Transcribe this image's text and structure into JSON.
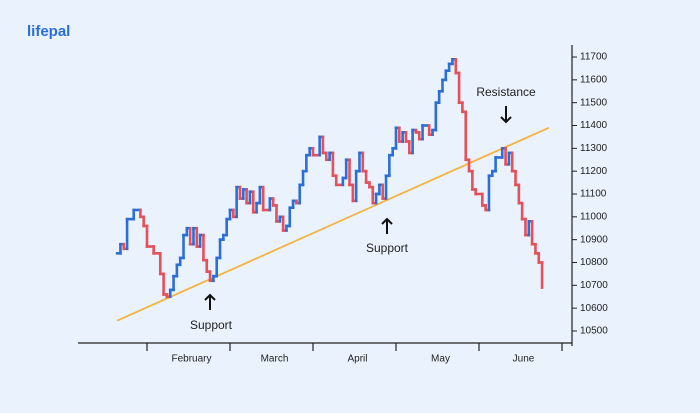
{
  "brand": "lifepal",
  "chart_data": {
    "type": "step-line",
    "categories": [
      null,
      "February",
      "March",
      "April",
      "May",
      "June"
    ],
    "xlim": [
      0,
      150
    ],
    "ylim": [
      10450,
      11750
    ],
    "yticks": [
      10500,
      10600,
      10700,
      10800,
      10900,
      11000,
      11100,
      11200,
      11300,
      11400,
      11500,
      11600,
      11700
    ],
    "up_color": "#2b6fd6",
    "down_color": "#e5505a",
    "x": [
      16,
      17,
      18,
      19,
      21,
      23,
      24,
      25,
      27,
      29,
      30,
      31,
      32,
      33,
      34,
      35,
      36,
      37,
      38,
      39,
      40,
      41,
      42,
      43,
      44,
      45,
      46,
      47,
      48,
      49,
      50,
      51,
      52,
      53,
      54,
      55,
      56,
      57,
      58,
      59,
      60,
      62,
      63,
      64,
      65,
      66,
      67,
      68,
      69,
      70,
      71,
      72,
      73,
      74,
      75,
      77,
      78,
      79,
      80,
      81,
      82,
      84,
      85,
      86,
      87,
      88,
      89,
      90,
      91,
      92,
      93,
      94,
      95,
      96,
      97,
      98,
      99,
      100,
      101,
      102,
      103,
      104,
      105,
      106,
      107,
      108,
      110,
      111,
      112,
      113,
      114,
      115,
      116,
      117,
      118,
      119,
      120,
      121,
      122,
      123,
      124,
      126,
      127,
      128,
      129,
      130,
      132,
      133,
      134,
      135,
      136,
      137,
      138,
      139,
      140,
      141,
      142,
      143,
      144
    ],
    "values": [
      10840,
      10880,
      10860,
      10990,
      11030,
      11000,
      10960,
      10870,
      10840,
      10750,
      10660,
      10650,
      10680,
      10740,
      10790,
      10820,
      10920,
      10950,
      10880,
      10950,
      10870,
      10920,
      10810,
      10760,
      10720,
      10740,
      10820,
      10900,
      10920,
      10990,
      11030,
      11000,
      11130,
      11080,
      11120,
      11060,
      11110,
      11020,
      11060,
      11130,
      11030,
      11080,
      11050,
      10980,
      11000,
      10940,
      10960,
      11040,
      11070,
      11060,
      11140,
      11200,
      11270,
      11300,
      11270,
      11350,
      11280,
      11250,
      11280,
      11180,
      11140,
      11170,
      11250,
      11140,
      11070,
      11200,
      11280,
      11200,
      11150,
      11130,
      11060,
      11100,
      11140,
      11080,
      11180,
      11270,
      11300,
      11390,
      11330,
      11370,
      11330,
      11280,
      11380,
      11370,
      11340,
      11400,
      11360,
      11380,
      11500,
      11550,
      11600,
      11640,
      11670,
      11690,
      11630,
      11500,
      11460,
      11250,
      11200,
      11120,
      11100,
      11050,
      11030,
      11180,
      11200,
      11260,
      11300,
      11230,
      11280,
      11200,
      11140,
      11060,
      10990,
      10920,
      10980,
      10880,
      10840,
      10800,
      10690
    ],
    "trendline": {
      "x": [
        16,
        146
      ],
      "values": [
        10545,
        11390
      ],
      "color": "#f5b342"
    },
    "annotations": [
      "Support",
      "Support",
      "Resistance"
    ]
  }
}
